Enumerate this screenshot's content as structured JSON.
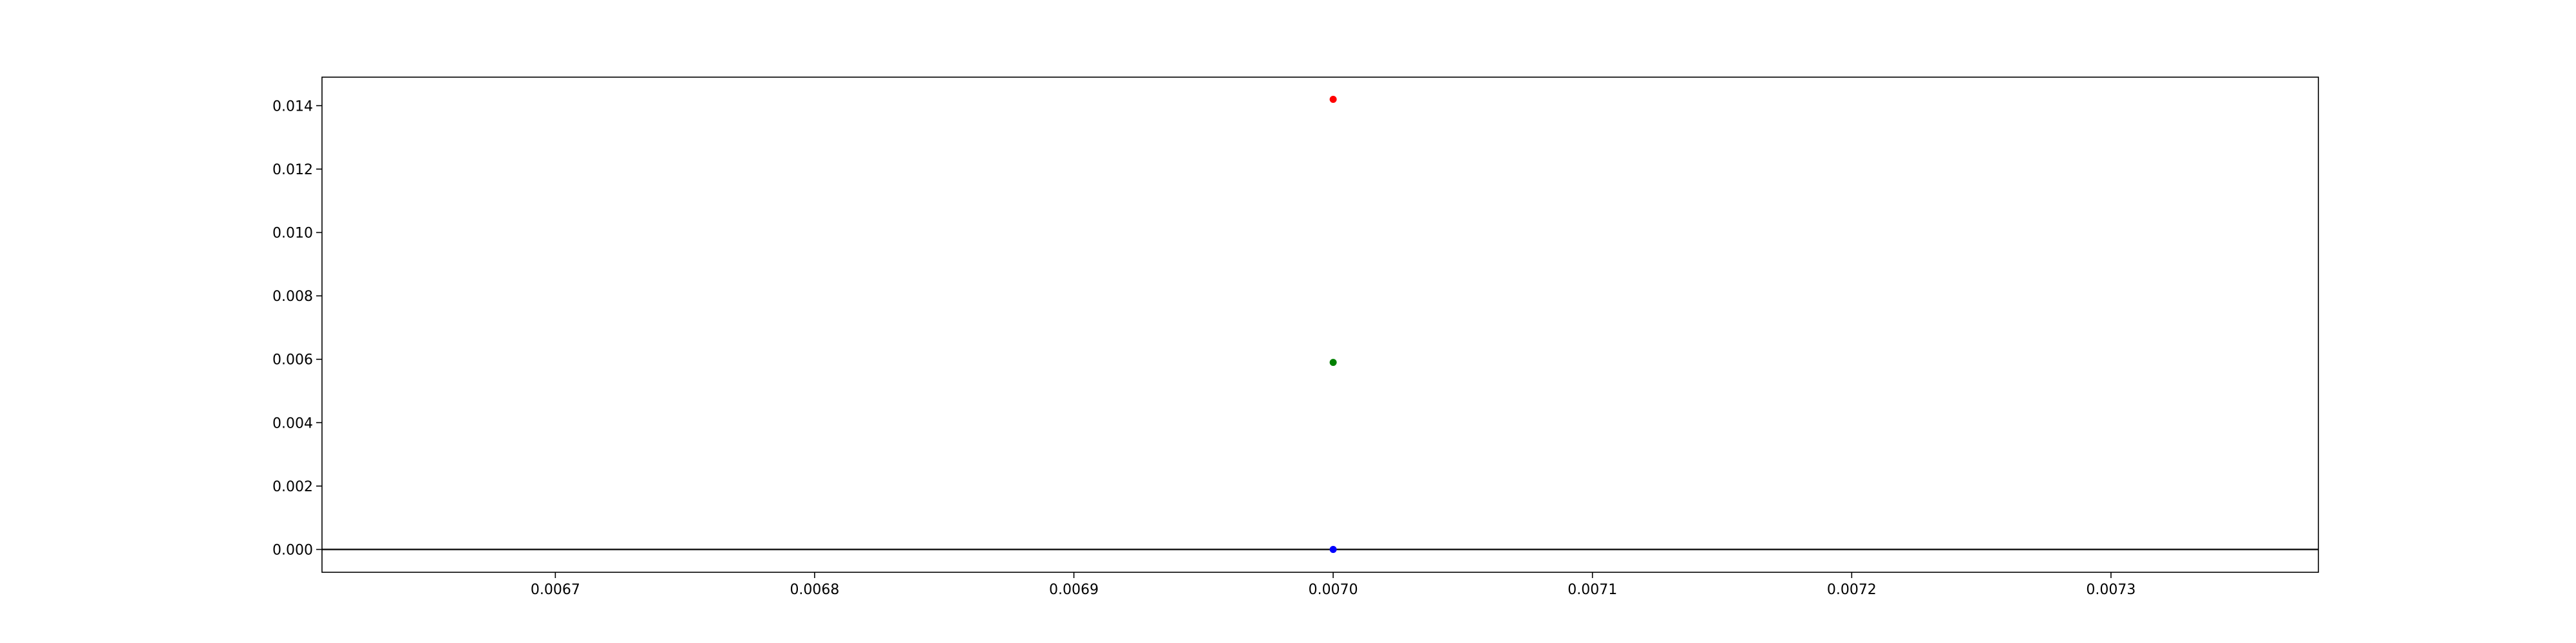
{
  "chart_data": {
    "type": "scatter",
    "title": "",
    "xlabel": "",
    "ylabel": "",
    "xlim": [
      0.00661,
      0.00738
    ],
    "ylim": [
      -0.00072,
      0.0149
    ],
    "grid": false,
    "x_ticks": [
      {
        "value": 0.0067,
        "label": "0.0067"
      },
      {
        "value": 0.0068,
        "label": "0.0068"
      },
      {
        "value": 0.0069,
        "label": "0.0069"
      },
      {
        "value": 0.007,
        "label": "0.0070"
      },
      {
        "value": 0.0071,
        "label": "0.0071"
      },
      {
        "value": 0.0072,
        "label": "0.0072"
      },
      {
        "value": 0.0073,
        "label": "0.0073"
      }
    ],
    "y_ticks": [
      {
        "value": 0.0,
        "label": "0.000"
      },
      {
        "value": 0.002,
        "label": "0.002"
      },
      {
        "value": 0.004,
        "label": "0.004"
      },
      {
        "value": 0.006,
        "label": "0.006"
      },
      {
        "value": 0.008,
        "label": "0.008"
      },
      {
        "value": 0.01,
        "label": "0.010"
      },
      {
        "value": 0.012,
        "label": "0.012"
      },
      {
        "value": 0.014,
        "label": "0.014"
      }
    ],
    "hline": {
      "y": 0.0,
      "color": "#000000"
    },
    "series": [
      {
        "color": "#ff0000",
        "points": [
          {
            "x": 0.007,
            "y": 0.0142
          }
        ]
      },
      {
        "color": "#008000",
        "points": [
          {
            "x": 0.007,
            "y": 0.0059
          }
        ]
      },
      {
        "color": "#0000ff",
        "points": [
          {
            "x": 0.007,
            "y": 0.0
          }
        ]
      }
    ]
  }
}
